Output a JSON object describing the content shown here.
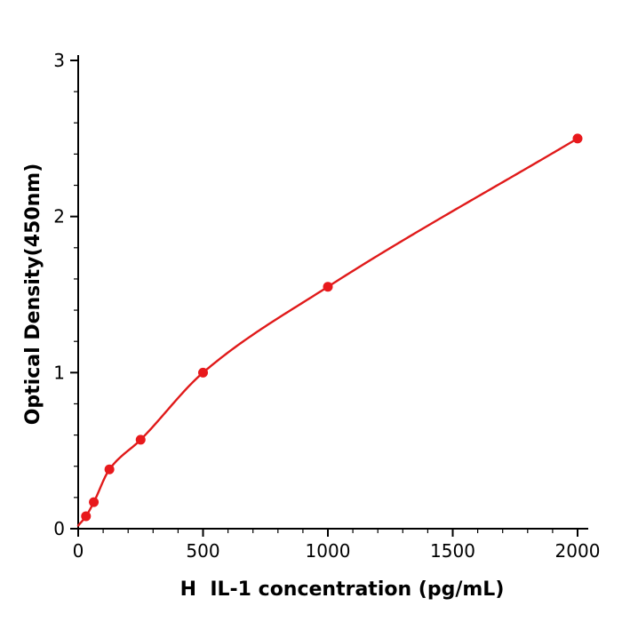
{
  "chart_data": {
    "type": "scatter",
    "title": "",
    "xlabel": "H  IL-1 concentration (pg/mL)",
    "ylabel": "Optical Density(450nm)",
    "x": [
      31.25,
      62.5,
      125,
      250,
      500,
      1000,
      2000
    ],
    "y": [
      0.08,
      0.17,
      0.38,
      0.57,
      1.0,
      1.55,
      2.5
    ],
    "fit_curve": {
      "type": "smooth-monotone",
      "anchor_start": [
        0,
        0.02
      ]
    },
    "xlim": [
      0,
      2050
    ],
    "ylim": [
      0,
      3
    ],
    "x_ticks": [
      0,
      500,
      1000,
      1500,
      2000
    ],
    "y_ticks": [
      0,
      1,
      2,
      3
    ],
    "x_minor_step": 100,
    "y_minor_step": 0.2,
    "grid": false,
    "legend": "none",
    "point_color": "#e8191c",
    "line_color": "#e01a1a",
    "axis_color": "#000000"
  }
}
